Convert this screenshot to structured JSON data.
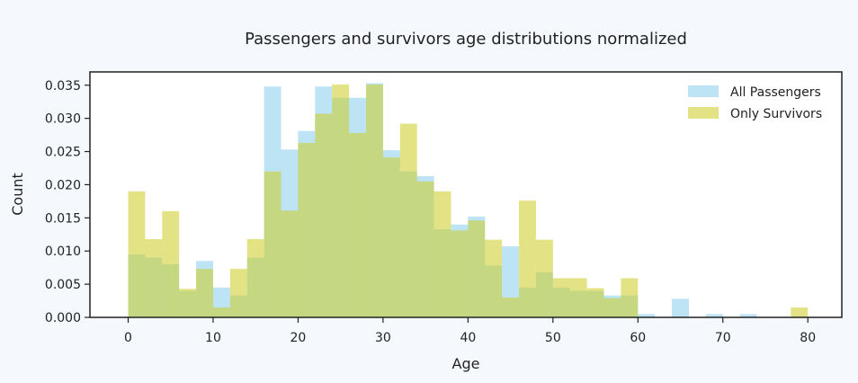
{
  "chart_data": {
    "type": "histogram",
    "title": "Passengers and survivors age distributions normalized",
    "xlabel": "Age",
    "ylabel": "Count",
    "xlim": [
      -4.5,
      84
    ],
    "ylim": [
      0,
      0.037
    ],
    "xticks": [
      0,
      10,
      20,
      30,
      40,
      50,
      60,
      70,
      80
    ],
    "yticks": [
      0.0,
      0.005,
      0.01,
      0.015,
      0.02,
      0.025,
      0.03,
      0.035
    ],
    "ytick_labels": [
      "0.000",
      "0.005",
      "0.010",
      "0.015",
      "0.020",
      "0.025",
      "0.030",
      "0.035"
    ],
    "bin_start": 0,
    "bin_width": 2,
    "legend_position": "top-right",
    "grid": false,
    "series": [
      {
        "name": "All Passengers",
        "color": "#87ceeb",
        "opacity": 0.55,
        "values": [
          0.0095,
          0.009,
          0.008,
          0.004,
          0.0085,
          0.0045,
          0.0033,
          0.009,
          0.0348,
          0.0253,
          0.0281,
          0.0348,
          0.0331,
          0.0331,
          0.0353,
          0.0252,
          0.022,
          0.0213,
          0.0133,
          0.014,
          0.0152,
          0.0078,
          0.0107,
          0.0045,
          0.0068,
          0.0045,
          0.004,
          0.004,
          0.0033,
          0.0033,
          0.0005,
          0,
          0.0028,
          0,
          0.0005,
          0,
          0.0005
        ]
      },
      {
        "name": "Only Survivors",
        "color": "#cccc22",
        "opacity": 0.55,
        "values": [
          0.019,
          0.0118,
          0.016,
          0.0043,
          0.0073,
          0.0015,
          0.0073,
          0.0118,
          0.022,
          0.0161,
          0.0263,
          0.0307,
          0.0351,
          0.0278,
          0.0351,
          0.0241,
          0.0292,
          0.0205,
          0.019,
          0.0131,
          0.0146,
          0.0117,
          0.003,
          0.0176,
          0.0117,
          0.0059,
          0.0059,
          0.0044,
          0.0029,
          0.0059,
          0,
          0,
          0,
          0,
          0,
          0,
          0,
          0,
          0,
          0.0015
        ]
      }
    ]
  }
}
